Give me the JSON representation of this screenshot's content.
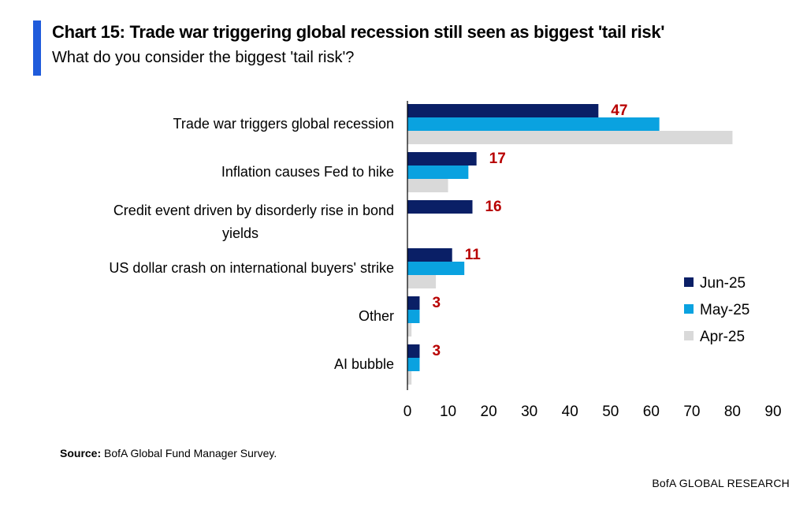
{
  "header": {
    "title": "Chart 15: Trade war triggering global recession still seen as biggest 'tail risk'",
    "subtitle": "What do you consider the biggest 'tail risk'?"
  },
  "footer": {
    "source_label": "Source:",
    "source_text": " BofA Global Fund Manager Survey.",
    "brand": "BofA GLOBAL RESEARCH"
  },
  "colors": {
    "accent": "#1f5bdb",
    "jun": "#0a1f66",
    "may": "#0aa2e0",
    "apr": "#d9d9d9",
    "value_label": "#b80000"
  },
  "chart_data": {
    "type": "bar",
    "orientation": "horizontal",
    "categories": [
      [
        "Trade war triggers global recession"
      ],
      [
        "Inflation causes Fed to hike"
      ],
      [
        "Credit event driven by disorderly rise in bond",
        "yields"
      ],
      [
        "US dollar crash on international buyers' strike"
      ],
      [
        "Other"
      ],
      [
        "AI bubble"
      ]
    ],
    "series": [
      {
        "name": "Jun-25",
        "values": [
          47,
          17,
          16,
          11,
          3,
          3
        ]
      },
      {
        "name": "May-25",
        "values": [
          62,
          15,
          null,
          14,
          3,
          3
        ]
      },
      {
        "name": "Apr-25",
        "values": [
          80,
          10,
          null,
          7,
          1,
          1
        ]
      }
    ],
    "data_labels": [
      "47",
      "17",
      "16",
      "11",
      "3",
      "3"
    ],
    "xlim": [
      0,
      90
    ],
    "xticks": [
      "0",
      "10",
      "20",
      "30",
      "40",
      "50",
      "60",
      "70",
      "80",
      "90"
    ],
    "grid": false,
    "legend_position": "right"
  }
}
